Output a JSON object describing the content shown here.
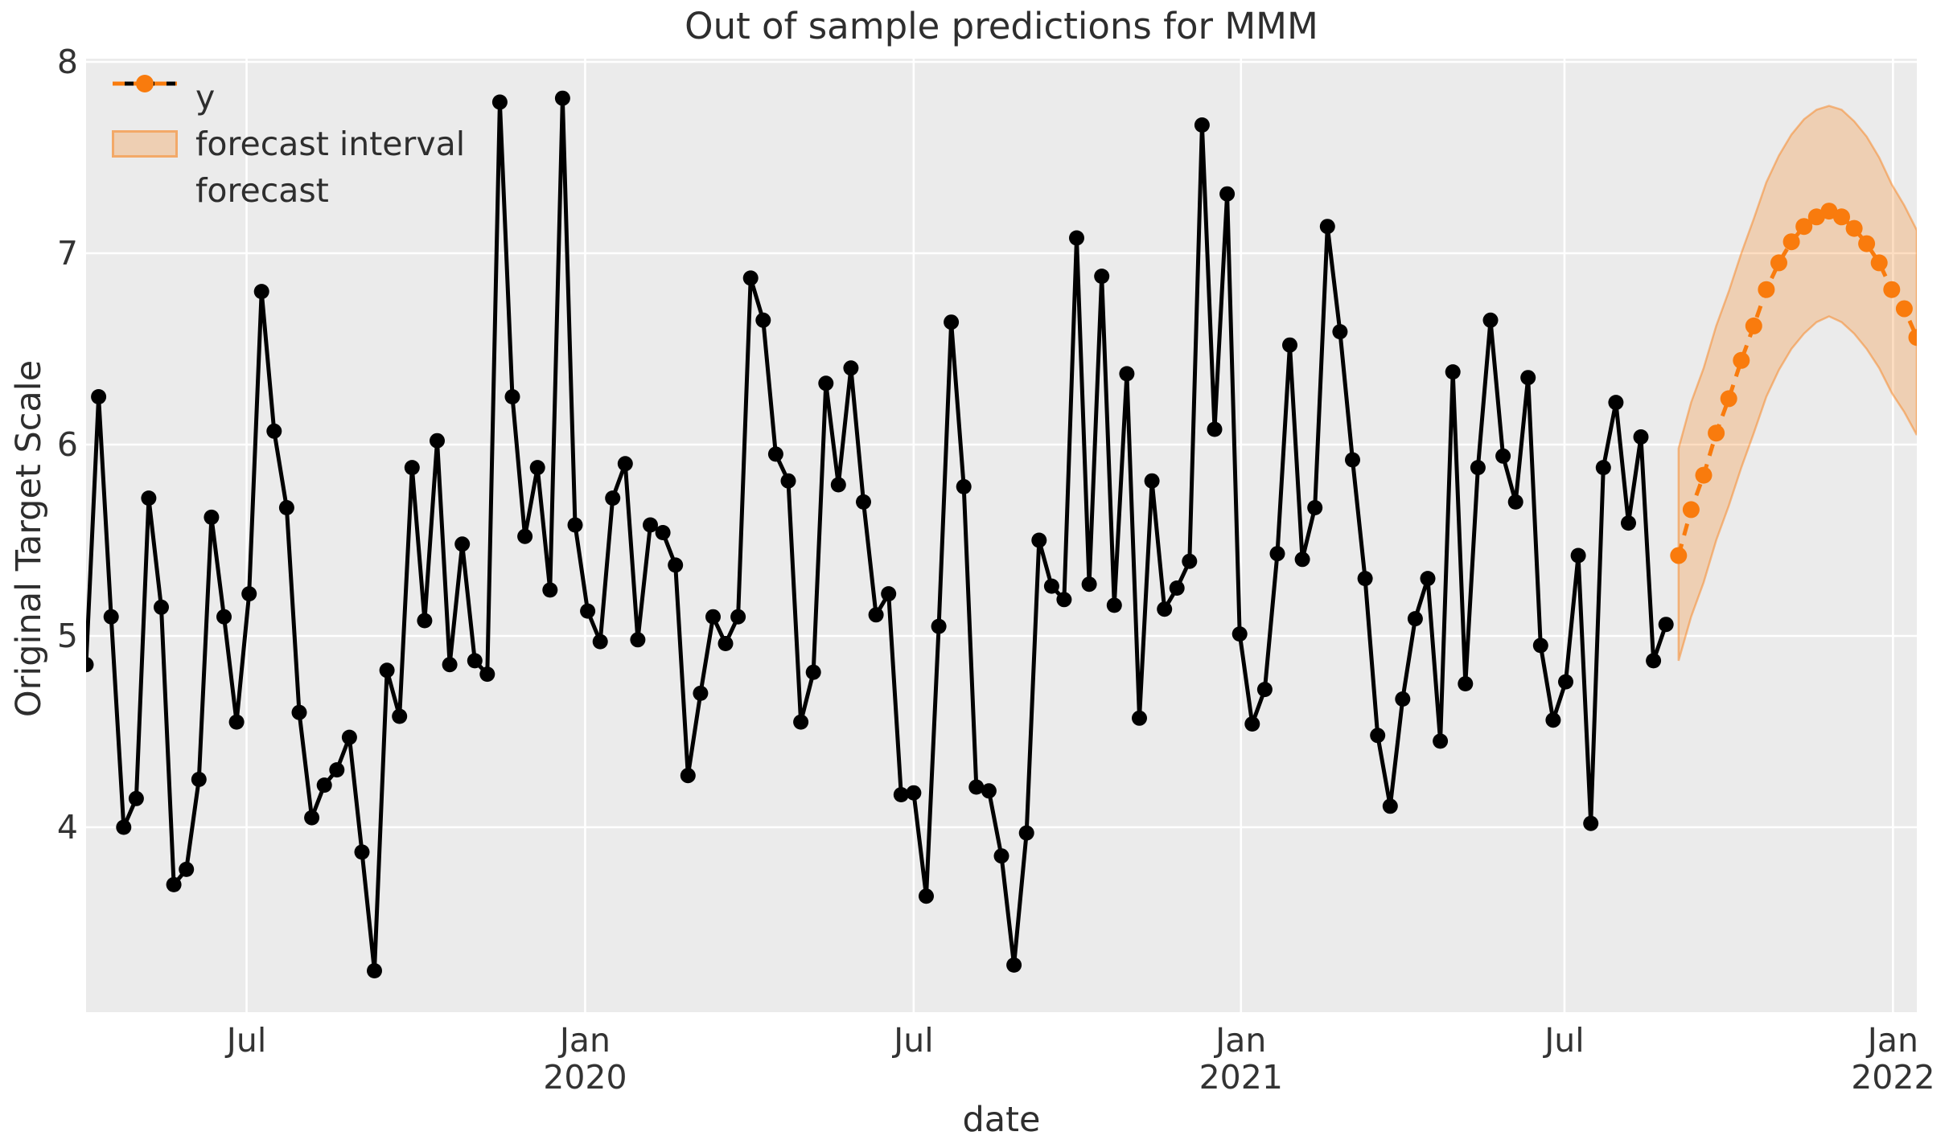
{
  "title": "Out of sample predictions for MMM",
  "colors": {
    "figure_bg": "#ffffff",
    "axes_bg": "#ebebeb",
    "grid": "#ffffff",
    "series_y": "#000000",
    "forecast": "#f97b0d",
    "band_fill": "rgba(249,123,13,0.25)",
    "band_edge": "rgba(249,123,13,0.45)",
    "text": "#2e2e2e",
    "tick_text": "#333333"
  },
  "legend": {
    "items": [
      {
        "label": "y",
        "type": "line-marker"
      },
      {
        "label": "forecast interval",
        "type": "patch"
      },
      {
        "label": "forecast",
        "type": "dashed-marker"
      }
    ]
  },
  "chart_data": {
    "type": "line",
    "title": "Out of sample predictions for MMM",
    "xlabel": "date",
    "ylabel": "Original Target Scale",
    "x_start_date": "2019-03-31",
    "x_frequency": "weekly",
    "ylim": [
      3.03,
      8.02
    ],
    "grid": true,
    "legend_position": "upper-left",
    "y_ticks": [
      8,
      7,
      6,
      5,
      4
    ],
    "x_ticks": [
      {
        "label": "Jul",
        "year": "",
        "week_index": 12.8
      },
      {
        "label": "Jan",
        "year": "2020",
        "week_index": 39.8
      },
      {
        "label": "Jul",
        "year": "",
        "week_index": 66.0
      },
      {
        "label": "Jan",
        "year": "2021",
        "week_index": 92.1
      },
      {
        "label": "Jul",
        "year": "",
        "week_index": 117.9
      },
      {
        "label": "Jan",
        "year": "2022",
        "week_index": 144.1
      }
    ],
    "series": [
      {
        "name": "y",
        "start_index": 0,
        "values": [
          4.85,
          6.25,
          5.1,
          4.0,
          4.15,
          5.72,
          5.15,
          3.7,
          3.78,
          4.25,
          5.62,
          5.1,
          4.55,
          5.22,
          6.8,
          6.07,
          5.67,
          4.6,
          4.05,
          4.22,
          4.3,
          4.47,
          3.87,
          3.25,
          4.82,
          4.58,
          5.88,
          5.08,
          6.02,
          4.85,
          5.48,
          4.87,
          4.8,
          7.79,
          6.25,
          5.52,
          5.88,
          5.24,
          7.81,
          5.58,
          5.13,
          4.97,
          5.72,
          5.9,
          4.98,
          5.58,
          5.54,
          5.37,
          4.27,
          4.7,
          5.1,
          4.96,
          5.1,
          6.87,
          6.65,
          5.95,
          5.81,
          4.55,
          4.81,
          6.32,
          5.79,
          6.4,
          5.7,
          5.11,
          5.22,
          4.17,
          4.18,
          3.64,
          5.05,
          6.64,
          5.78,
          4.21,
          4.19,
          3.85,
          3.28,
          3.97,
          5.5,
          5.26,
          5.19,
          7.08,
          5.27,
          6.88,
          5.16,
          6.37,
          4.57,
          5.81,
          5.14,
          5.25,
          5.39,
          7.67,
          6.08,
          7.31,
          5.01,
          4.54,
          4.72,
          5.43,
          6.52,
          5.4,
          5.67,
          7.14,
          6.59,
          5.92,
          5.3,
          4.48,
          4.11,
          4.67,
          5.09,
          5.3,
          4.45,
          6.38,
          4.75,
          5.88,
          6.65,
          5.94,
          5.7,
          6.35,
          4.95,
          4.56,
          4.76,
          5.42,
          4.02,
          5.88,
          6.22,
          5.59,
          6.04,
          4.87,
          5.06
        ]
      },
      {
        "name": "forecast",
        "start_index": 127,
        "values": [
          5.42,
          5.66,
          5.84,
          6.06,
          6.24,
          6.44,
          6.62,
          6.81,
          6.95,
          7.06,
          7.14,
          7.19,
          7.22,
          7.19,
          7.13,
          7.05,
          6.95,
          6.81,
          6.71,
          6.56
        ]
      },
      {
        "name": "forecast interval",
        "start_index": 127,
        "lower": [
          4.87,
          5.1,
          5.28,
          5.5,
          5.68,
          5.88,
          6.06,
          6.25,
          6.39,
          6.5,
          6.58,
          6.64,
          6.67,
          6.64,
          6.58,
          6.5,
          6.4,
          6.27,
          6.17,
          6.05
        ],
        "upper": [
          5.98,
          6.22,
          6.4,
          6.62,
          6.8,
          7.0,
          7.18,
          7.37,
          7.51,
          7.62,
          7.7,
          7.75,
          7.77,
          7.75,
          7.69,
          7.61,
          7.5,
          7.36,
          7.25,
          7.12
        ]
      }
    ]
  }
}
